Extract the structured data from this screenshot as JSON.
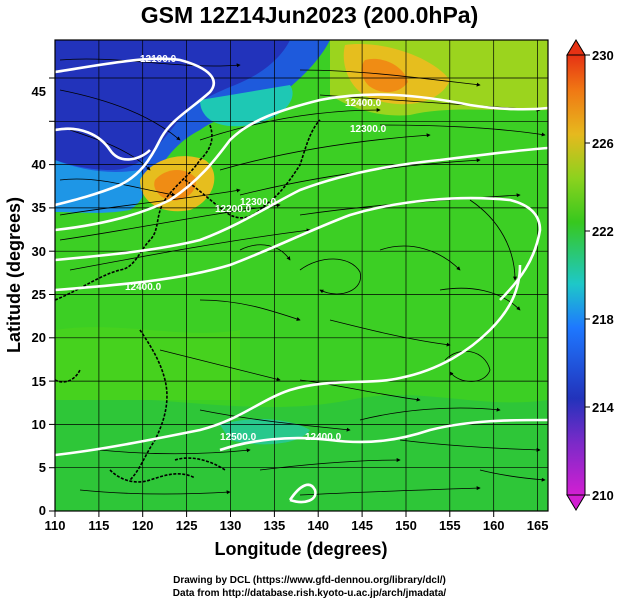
{
  "title": "GSM 12Z14Jun2023 (200.0hPa)",
  "xlabel": "Longitude (degrees)",
  "ylabel": "Latitude  (degrees)",
  "x_ticks": [
    "110",
    "115",
    "120",
    "125",
    "130",
    "135",
    "140",
    "145",
    "150",
    "155",
    "160",
    "165"
  ],
  "y_ticks": [
    "0",
    "5",
    "10",
    "15",
    "20",
    "25",
    "30",
    "35",
    "40",
    "45"
  ],
  "colorbar_ticks": [
    "210",
    "214",
    "218",
    "222",
    "226",
    "230"
  ],
  "contour_labels": [
    "12100.0",
    "12400.0",
    "12300.0",
    "12200.0",
    "12400.0",
    "12300.0",
    "12500.0",
    "12400.0"
  ],
  "credit_line1": "Drawing by DCL (https://www.gfd-dennou.org/library/dcl/)",
  "credit_line2": "Data from http://database.rish.kyoto-u.ac.jp/arch/jmadata/",
  "colors": {
    "low": "#d21fd2",
    "very_low": "#2233bb",
    "cool": "#1e8cff",
    "mid": "#37c81e",
    "warm": "#e6b91e",
    "high": "#e63214"
  }
}
